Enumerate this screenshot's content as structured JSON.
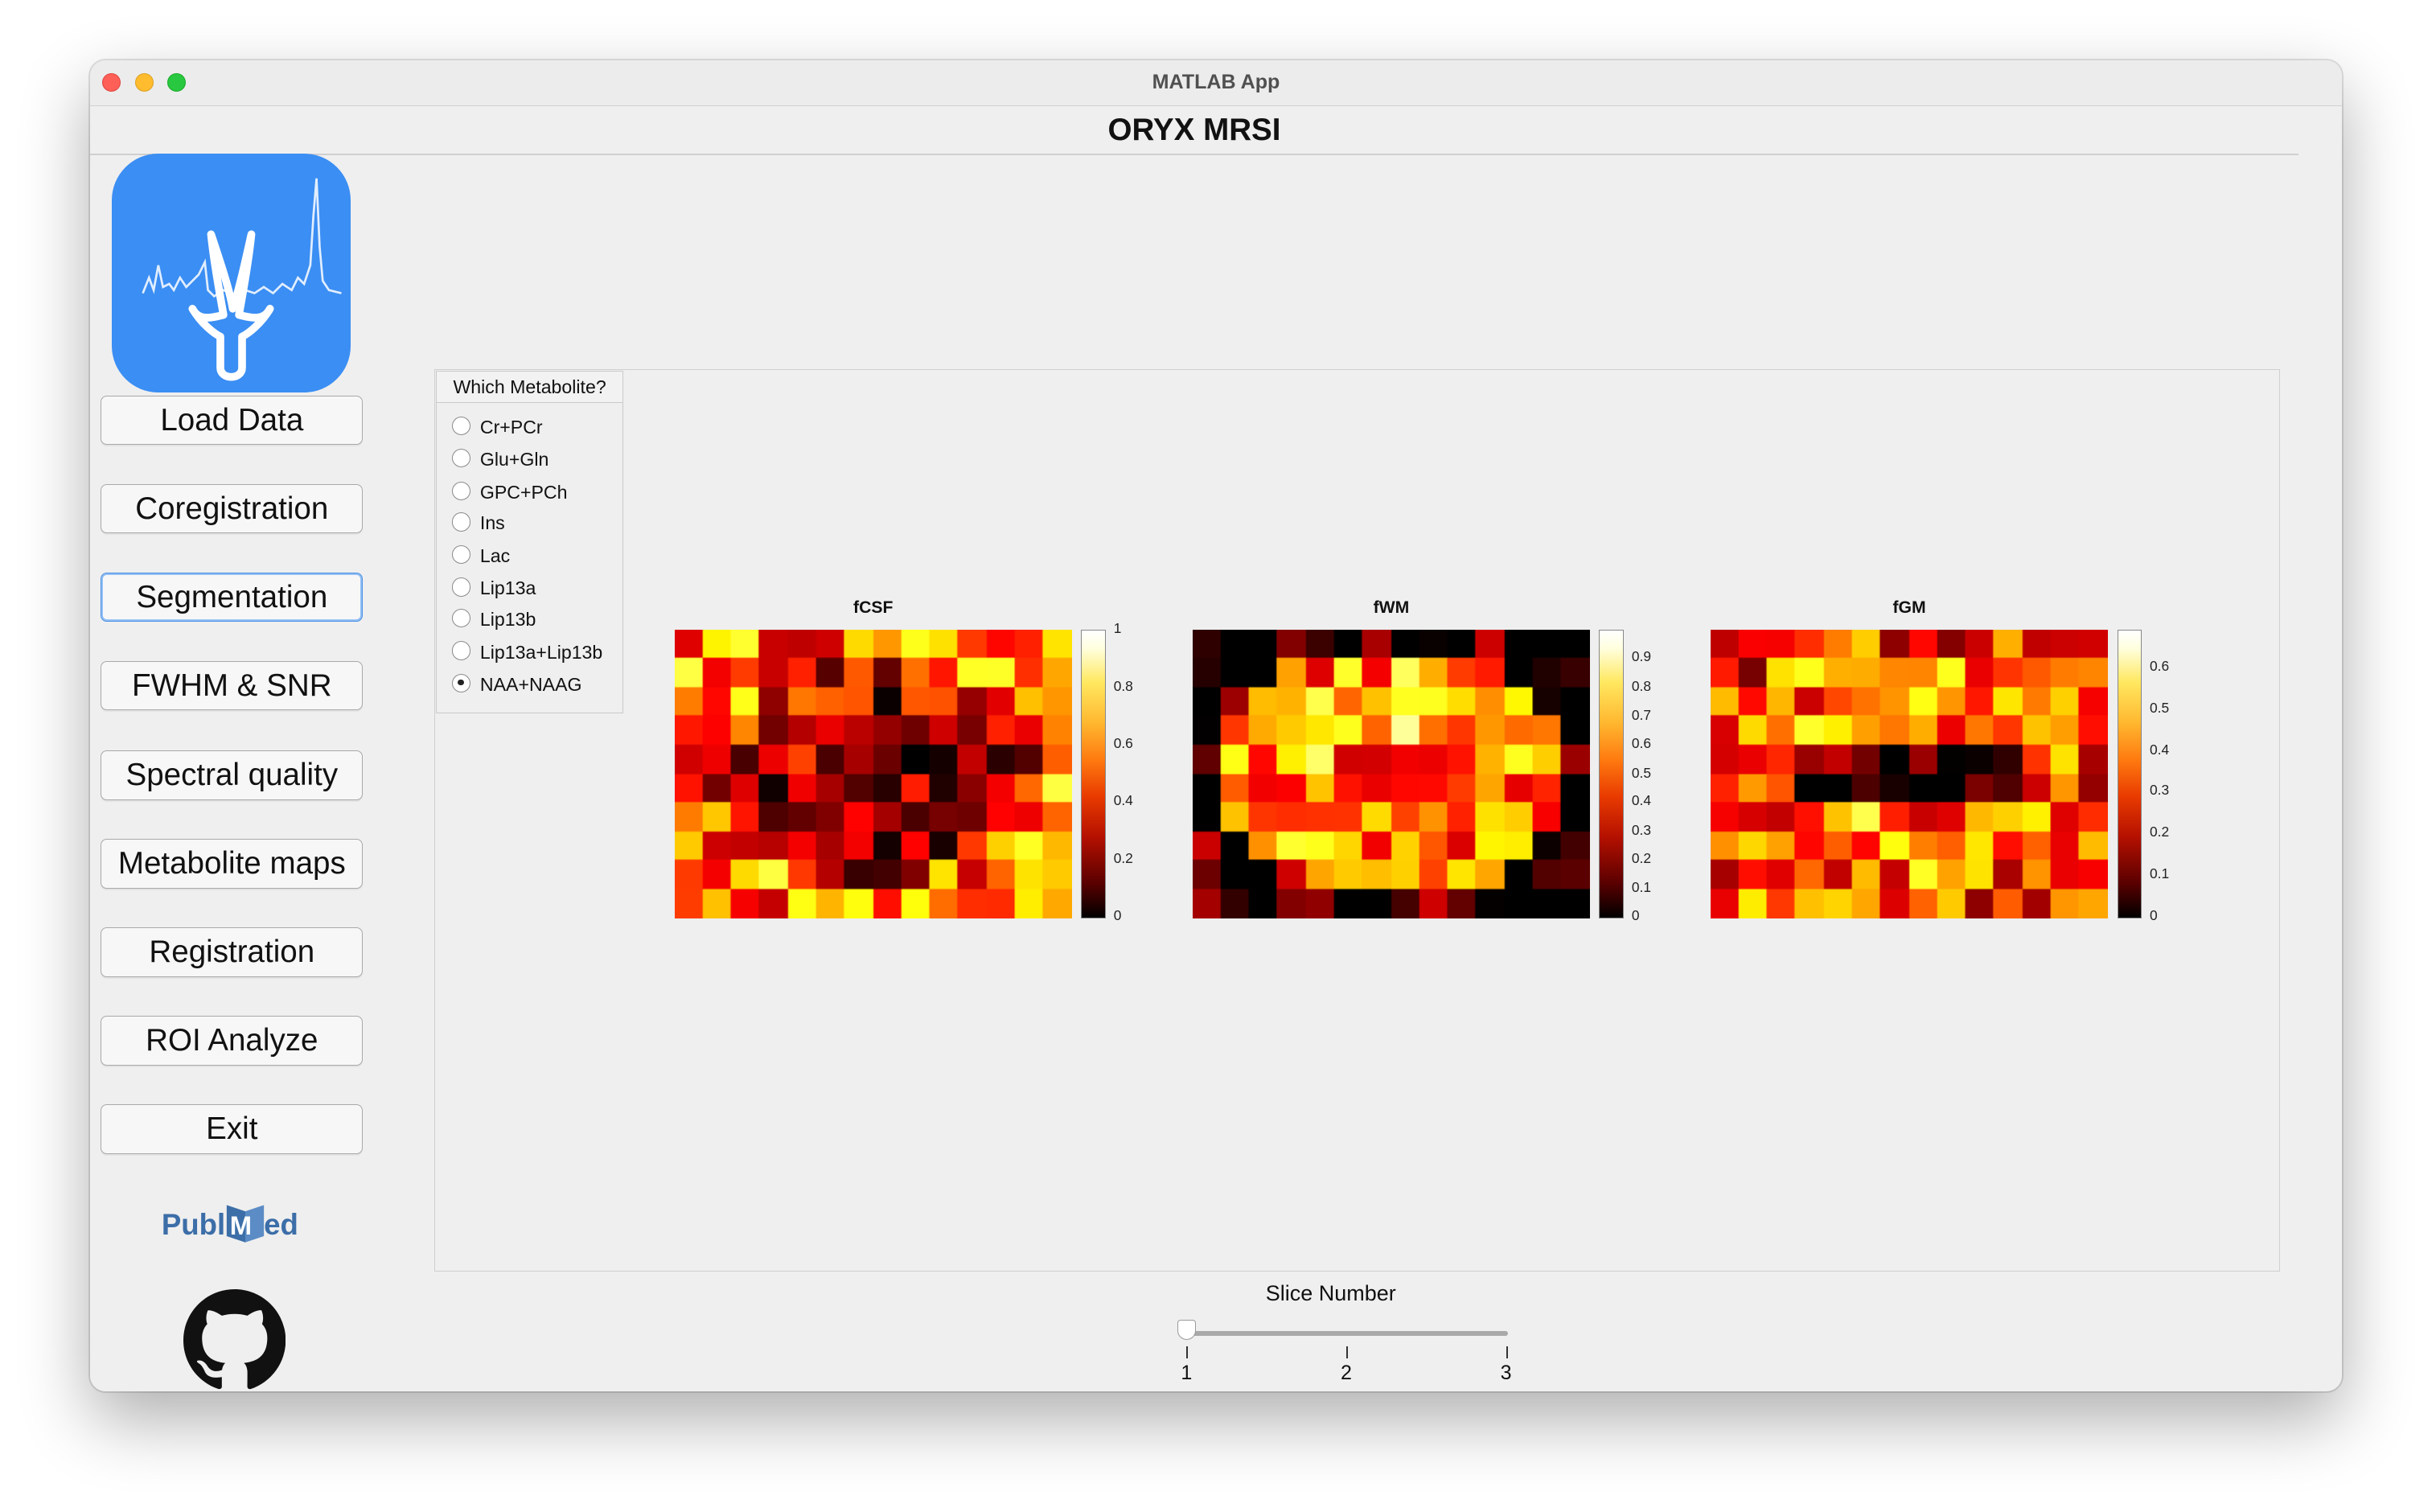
{
  "window": {
    "title": "MATLAB App"
  },
  "app": {
    "title": "ORYX MRSI"
  },
  "sidebar": {
    "buttons": [
      {
        "label": "Load Data"
      },
      {
        "label": "Coregistration"
      },
      {
        "label": "Segmentation"
      },
      {
        "label": "FWHM & SNR"
      },
      {
        "label": "Spectral quality"
      },
      {
        "label": "Metabolite maps"
      },
      {
        "label": "Registration"
      },
      {
        "label": "ROI Analyze"
      },
      {
        "label": "Exit"
      }
    ],
    "focused_button": "Segmentation",
    "links": [
      {
        "icon": "pubmed-logo",
        "text": "PubMed"
      },
      {
        "icon": "github-icon"
      }
    ],
    "logo_icon": "oryx-spectrum-logo"
  },
  "metabolite_selector": {
    "title": "Which Metabolite?",
    "options": [
      "Cr+PCr",
      "Glu+Gln",
      "GPC+PCh",
      "Ins",
      "Lac",
      "Lip13a",
      "Lip13b",
      "Lip13a+Lip13b",
      "NAA+NAAG"
    ],
    "selected": "NAA+NAAG"
  },
  "maps": [
    {
      "title": "fCSF",
      "colorbar_ticks": [
        "1",
        "0.8",
        "0.6",
        "0.4",
        "0.2",
        "0"
      ]
    },
    {
      "title": "fWM",
      "colorbar_ticks": [
        "0.9",
        "0.8",
        "0.7",
        "0.6",
        "0.5",
        "0.4",
        "0.3",
        "0.2",
        "0.1",
        "0"
      ]
    },
    {
      "title": "fGM",
      "colorbar_ticks": [
        "0.6",
        "0.5",
        "0.4",
        "0.3",
        "0.2",
        "0.1",
        "0"
      ]
    }
  ],
  "colormap": "hot",
  "slider": {
    "label": "Slice Number",
    "ticks": [
      "1",
      "2",
      "3"
    ],
    "value": 1
  }
}
